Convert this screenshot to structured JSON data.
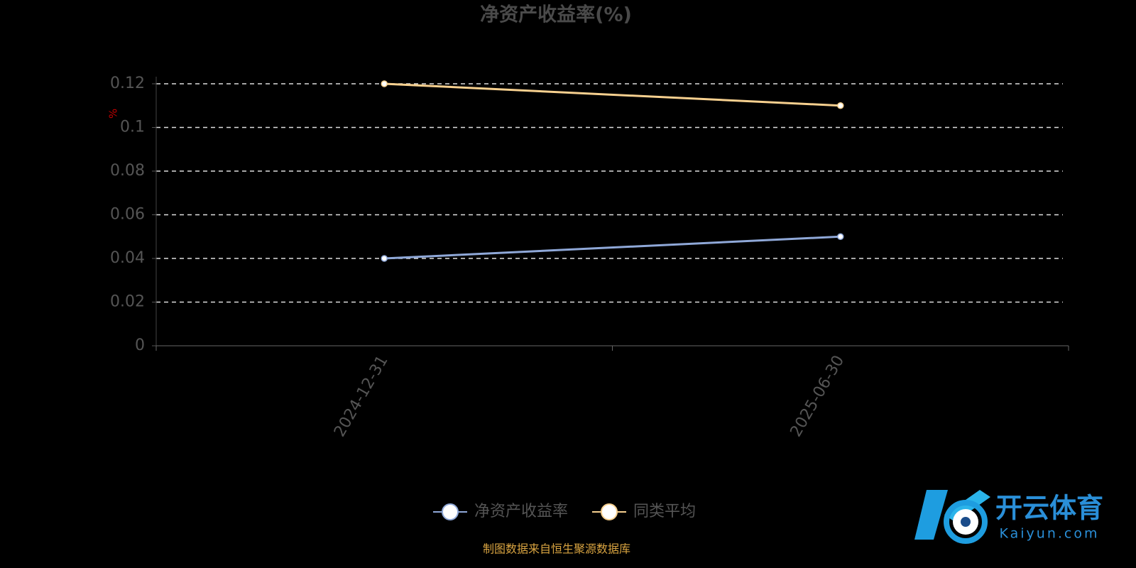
{
  "chart_data": {
    "type": "line",
    "title": "净资产收益率(%)",
    "y_label": "%",
    "categories": [
      "2024-12-31",
      "2025-06-30"
    ],
    "series": [
      {
        "name": "净资产收益率",
        "color": "#8fa8d8",
        "values": [
          0.04,
          0.05
        ]
      },
      {
        "name": "同类平均",
        "color": "#f7d08f",
        "values": [
          0.12,
          0.11
        ]
      }
    ],
    "ylim": [
      0,
      0.12
    ],
    "yticks": [
      0,
      0.02,
      0.04,
      0.06,
      0.08,
      0.1,
      0.12
    ],
    "grid": true,
    "legend": "bottom"
  },
  "source": "制图数据来自恒生聚源数据库",
  "watermark": {
    "brand": "开云体育",
    "domain": "Kaiyun.com"
  }
}
